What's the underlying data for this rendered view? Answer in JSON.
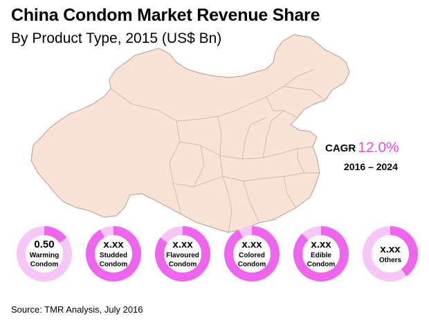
{
  "chart_data": {
    "type": "pie",
    "title": "China Condom Market Revenue Share",
    "subtitle": "By Product Type, 2015 (US$ Bn)",
    "segments": [
      {
        "label": "Warming Condom",
        "value_text": "0.50",
        "share": 0.15
      },
      {
        "label": "Studded Condom",
        "value_text": "x.xx",
        "share": 0.92
      },
      {
        "label": "Flavoured Condom",
        "value_text": "x.xx",
        "share": 0.85
      },
      {
        "label": "Colored Condom",
        "value_text": "x.xx",
        "share": 0.92
      },
      {
        "label": "Edible Condom",
        "value_text": "x.xx",
        "share": 0.88
      },
      {
        "label": "Others",
        "value_text": "x.xx",
        "share": 0.4
      }
    ],
    "cagr": {
      "label": "CAGR",
      "value": "12.0%",
      "period": "2016 – 2024"
    },
    "source": "Source: TMR Analysis, July 2016"
  },
  "colors": {
    "ring_fill": "#ee66ee",
    "ring_remainder": "#f6c6f6",
    "ring_center": "#ffffff",
    "map_fill": "#f9e3d6",
    "map_border": "#bfaa9e",
    "cagr_accent": "#e84de8"
  }
}
